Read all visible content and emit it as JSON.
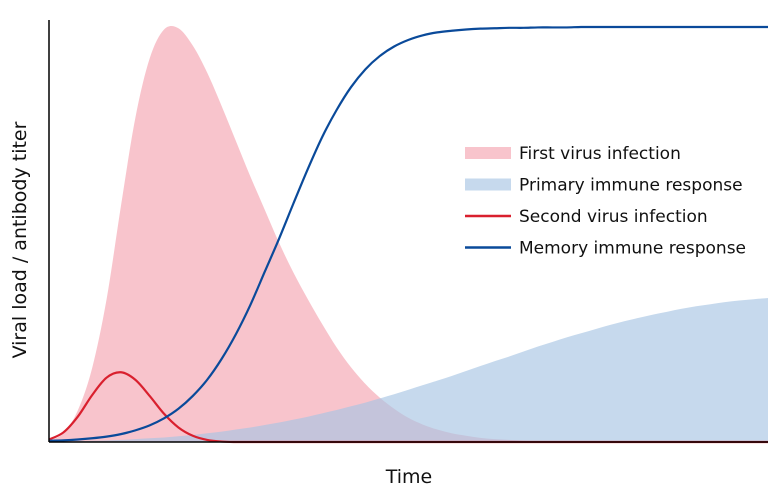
{
  "chart_data": {
    "type": "area",
    "xlabel": "Time",
    "ylabel": "Viral load / antibody titer",
    "xlim": [
      0,
      100
    ],
    "ylim": [
      0,
      1
    ],
    "grid": false,
    "legend_position": "right",
    "x": [
      0,
      2,
      4,
      6,
      8,
      10,
      12,
      14,
      16,
      18,
      20,
      22,
      24,
      26,
      28,
      30,
      32,
      34,
      36,
      38,
      40,
      42,
      44,
      46,
      48,
      50,
      52,
      54,
      56,
      58,
      60,
      62,
      64,
      66,
      68,
      70,
      72,
      74,
      76,
      78,
      80,
      82,
      84,
      86,
      88,
      90,
      92,
      94,
      96,
      98,
      100
    ],
    "series": [
      {
        "name": "First virus infection",
        "style": "area",
        "color": "#f4a5b0",
        "values": [
          0.003,
          0.021,
          0.076,
          0.178,
          0.343,
          0.568,
          0.78,
          0.924,
          0.994,
          0.997,
          0.955,
          0.89,
          0.81,
          0.725,
          0.64,
          0.56,
          0.48,
          0.408,
          0.344,
          0.284,
          0.228,
          0.18,
          0.14,
          0.107,
          0.08,
          0.058,
          0.042,
          0.03,
          0.021,
          0.015,
          0.01,
          0.007,
          0.005,
          0.003,
          0.002,
          0.001,
          0.001,
          0,
          0,
          0,
          0,
          0,
          0,
          0,
          0,
          0,
          0,
          0,
          0,
          0,
          0
        ]
      },
      {
        "name": "Primary immune response",
        "style": "area",
        "color": "#a8c4e3",
        "values": [
          0,
          0.001,
          0.002,
          0.003,
          0.004,
          0.005,
          0.007,
          0.009,
          0.011,
          0.014,
          0.017,
          0.021,
          0.025,
          0.03,
          0.035,
          0.041,
          0.047,
          0.054,
          0.061,
          0.069,
          0.077,
          0.086,
          0.095,
          0.105,
          0.115,
          0.126,
          0.137,
          0.148,
          0.159,
          0.171,
          0.183,
          0.195,
          0.206,
          0.218,
          0.23,
          0.241,
          0.252,
          0.262,
          0.272,
          0.282,
          0.291,
          0.299,
          0.307,
          0.314,
          0.321,
          0.327,
          0.332,
          0.337,
          0.341,
          0.344,
          0.347
        ]
      },
      {
        "name": "Second virus infection",
        "style": "line",
        "color": "#d9202e",
        "values": [
          0.006,
          0.023,
          0.061,
          0.113,
          0.155,
          0.168,
          0.15,
          0.111,
          0.068,
          0.035,
          0.015,
          0.005,
          0.001,
          0,
          0,
          0,
          0,
          0,
          0,
          0,
          0,
          0,
          0,
          0,
          0,
          0,
          0,
          0,
          0,
          0,
          0,
          0,
          0,
          0,
          0,
          0,
          0,
          0,
          0,
          0,
          0,
          0,
          0,
          0,
          0,
          0,
          0,
          0,
          0,
          0,
          0
        ]
      },
      {
        "name": "Memory immune response",
        "style": "line",
        "color": "#0a4a9a",
        "values": [
          0.003,
          0.004,
          0.006,
          0.009,
          0.013,
          0.019,
          0.028,
          0.04,
          0.057,
          0.08,
          0.111,
          0.15,
          0.2,
          0.26,
          0.33,
          0.41,
          0.49,
          0.575,
          0.658,
          0.735,
          0.8,
          0.855,
          0.898,
          0.93,
          0.953,
          0.969,
          0.98,
          0.987,
          0.991,
          0.994,
          0.996,
          0.997,
          0.998,
          0.998,
          0.999,
          0.999,
          0.999,
          1,
          1,
          1,
          1,
          1,
          1,
          1,
          1,
          1,
          1,
          1,
          1,
          1,
          1
        ]
      }
    ]
  }
}
